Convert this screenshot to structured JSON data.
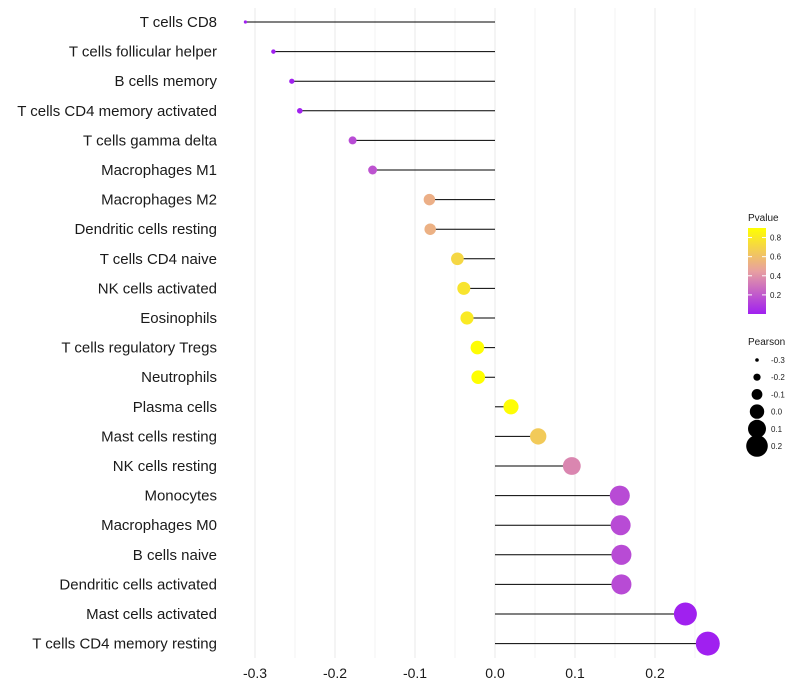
{
  "chart_data": {
    "type": "lollipop",
    "title": "",
    "xlabel": "",
    "ylabel": "",
    "xlim": [
      -0.33,
      0.28
    ],
    "x_ticks": [
      -0.3,
      -0.2,
      -0.1,
      0.0,
      0.1,
      0.2
    ],
    "x_tick_labels": [
      "-0.3",
      "-0.2",
      "-0.1",
      "0.0",
      "0.1",
      "0.2"
    ],
    "grid": true,
    "categories": [
      "T cells CD8",
      "T cells follicular helper",
      "B cells memory",
      "T cells CD4 memory activated",
      "T cells gamma delta",
      "Macrophages M1",
      "Macrophages M2",
      "Dendritic cells resting",
      "T cells CD4 naive",
      "NK cells activated",
      "Eosinophils",
      "T cells regulatory  Tregs ",
      "Neutrophils",
      "Plasma cells",
      "Mast cells resting",
      "NK cells resting",
      "Monocytes",
      "Macrophages M0",
      "B cells naive",
      "Dendritic cells activated",
      "Mast cells activated",
      "T cells CD4 memory resting"
    ],
    "pearson": [
      -0.312,
      -0.277,
      -0.254,
      -0.244,
      -0.178,
      -0.153,
      -0.082,
      -0.081,
      -0.047,
      -0.039,
      -0.035,
      -0.022,
      -0.021,
      0.02,
      0.054,
      0.096,
      0.156,
      0.157,
      0.158,
      0.158,
      0.238,
      0.266
    ],
    "pvalue": [
      0.0,
      0.001,
      0.005,
      0.007,
      0.15,
      0.18,
      0.52,
      0.53,
      0.71,
      0.77,
      0.8,
      0.89,
      0.9,
      0.89,
      0.65,
      0.36,
      0.15,
      0.15,
      0.15,
      0.15,
      0.003,
      0.001
    ],
    "legend_color": {
      "title": "Pvalue",
      "ticks": [
        0.2,
        0.4,
        0.6,
        0.8
      ],
      "tick_labels": [
        "0.2",
        "0.4",
        "0.6",
        "0.8"
      ],
      "range": [
        0.0,
        0.9
      ],
      "low_color": "#a020f0",
      "mid_color": "#e8a0a0",
      "high_color": "#ffff00",
      "placement": "right"
    },
    "legend_size": {
      "title": "Pearson",
      "values": [
        -0.3,
        -0.2,
        -0.1,
        0.0,
        0.1,
        0.2
      ],
      "labels": [
        "-0.3",
        "-0.2",
        "-0.1",
        "0.0",
        "0.1",
        "0.2"
      ],
      "placement": "right"
    }
  },
  "colors": {
    "background": "#ffffff",
    "grid": "#ebebeb",
    "segment": "#000000",
    "text": "#1a1a1a"
  }
}
